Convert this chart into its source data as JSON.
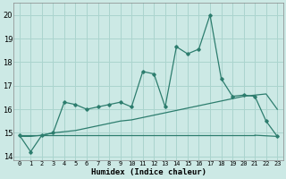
{
  "xlabel": "Humidex (Indice chaleur)",
  "background_color": "#cce9e5",
  "grid_color": "#aad4ce",
  "line_color": "#2d7d6e",
  "xlim": [
    -0.5,
    23.5
  ],
  "ylim": [
    13.85,
    20.5
  ],
  "yticks": [
    14,
    15,
    16,
    17,
    18,
    19,
    20
  ],
  "xticks": [
    0,
    1,
    2,
    3,
    4,
    5,
    6,
    7,
    8,
    9,
    10,
    11,
    12,
    13,
    14,
    15,
    16,
    17,
    18,
    19,
    20,
    21,
    22,
    23
  ],
  "main_line": [
    14.9,
    14.2,
    14.9,
    15.0,
    16.3,
    16.2,
    16.0,
    16.1,
    16.2,
    16.3,
    16.1,
    17.6,
    17.5,
    16.1,
    18.65,
    18.35,
    18.55,
    20.0,
    17.3,
    16.55,
    16.6,
    16.55,
    15.5,
    14.85
  ],
  "trend_line1": [
    14.85,
    14.85,
    14.9,
    15.0,
    15.05,
    15.1,
    15.2,
    15.3,
    15.4,
    15.5,
    15.55,
    15.65,
    15.75,
    15.85,
    15.95,
    16.05,
    16.15,
    16.25,
    16.35,
    16.45,
    16.55,
    16.6,
    16.65,
    16.0
  ],
  "flat_line_x": [
    0,
    21
  ],
  "flat_line_y": [
    14.9,
    14.9
  ],
  "flat_line2_x": [
    21,
    23
  ],
  "flat_line2_y": [
    14.9,
    14.85
  ]
}
